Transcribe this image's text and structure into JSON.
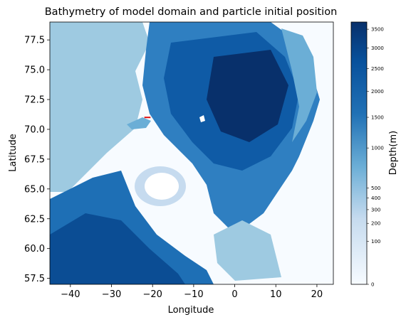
{
  "chart_data": {
    "type": "heatmap",
    "title": "Bathymetry of model domain and particle initial position",
    "xlabel": "Longitude",
    "ylabel": "Latitude",
    "xlim": [
      -45,
      24
    ],
    "ylim": [
      57,
      79
    ],
    "xticks": [
      -40,
      -30,
      -20,
      -10,
      0,
      10,
      20
    ],
    "yticks": [
      57.5,
      60.0,
      62.5,
      65.0,
      67.5,
      70.0,
      72.5,
      75.0,
      77.5
    ],
    "xtick_labels": [
      "−40",
      "−30",
      "−20",
      "−10",
      "0",
      "10",
      "20"
    ],
    "ytick_labels": [
      "57.5",
      "60.0",
      "62.5",
      "65.0",
      "67.5",
      "70.0",
      "72.5",
      "75.0",
      "77.5"
    ],
    "colormap": "Blues",
    "colorbar": {
      "label": "Depth(m)",
      "scale": "sqrt",
      "range": [
        0,
        3700
      ],
      "ticks": [
        0,
        100,
        200,
        300,
        400,
        500,
        1000,
        1500,
        2000,
        2500,
        3000,
        3500
      ],
      "tick_labels": [
        "0",
        "100",
        "200",
        "300",
        "400",
        "500",
        "1000",
        "1500",
        "2000",
        "2500",
        "3000",
        "3500"
      ]
    },
    "particle_initial_position": {
      "lon_range": [
        -22,
        -20.5
      ],
      "lat": 71.0,
      "color": "#e01010"
    },
    "grid": false
  }
}
